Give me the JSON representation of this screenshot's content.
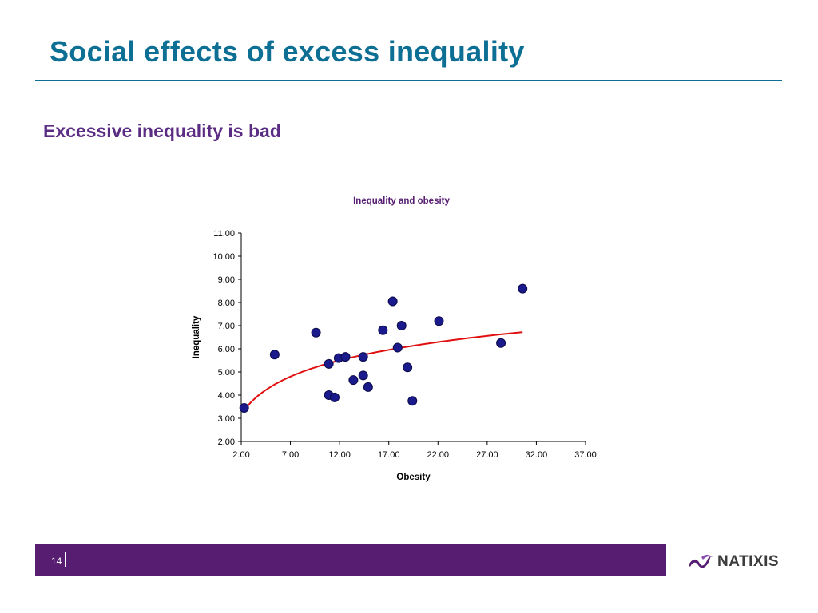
{
  "slide": {
    "title": "Social effects of excess inequality",
    "subtitle": "Excessive inequality is bad",
    "page_number": "14"
  },
  "brand": {
    "name": "NATIXIS",
    "title_color": "#0e6f94",
    "accent_color": "#571d70"
  },
  "chart_data": {
    "type": "scatter",
    "title": "Inequality and obesity",
    "xlabel": "Obesity",
    "ylabel": "Inequality",
    "xlim": [
      2,
      37
    ],
    "ylim": [
      2,
      11
    ],
    "x_ticks": [
      "2.00",
      "7.00",
      "12.00",
      "17.00",
      "22.00",
      "27.00",
      "32.00",
      "37.00"
    ],
    "y_ticks": [
      "2.00",
      "3.00",
      "4.00",
      "5.00",
      "6.00",
      "7.00",
      "8.00",
      "9.00",
      "10.00",
      "11.00"
    ],
    "grid": false,
    "legend": "none",
    "marker_color": "#1a1a8c",
    "trend_color": "#e01010",
    "points": [
      {
        "x": 2.3,
        "y": 3.45
      },
      {
        "x": 5.4,
        "y": 5.75
      },
      {
        "x": 9.6,
        "y": 6.7
      },
      {
        "x": 10.9,
        "y": 5.35
      },
      {
        "x": 10.9,
        "y": 4.0
      },
      {
        "x": 11.5,
        "y": 3.9
      },
      {
        "x": 11.9,
        "y": 5.6
      },
      {
        "x": 12.6,
        "y": 5.65
      },
      {
        "x": 13.4,
        "y": 4.65
      },
      {
        "x": 14.4,
        "y": 5.65
      },
      {
        "x": 14.4,
        "y": 4.85
      },
      {
        "x": 14.9,
        "y": 4.35
      },
      {
        "x": 16.4,
        "y": 6.8
      },
      {
        "x": 17.4,
        "y": 8.05
      },
      {
        "x": 17.9,
        "y": 6.05
      },
      {
        "x": 18.3,
        "y": 7.0
      },
      {
        "x": 18.9,
        "y": 5.2
      },
      {
        "x": 19.4,
        "y": 3.75
      },
      {
        "x": 22.1,
        "y": 7.2
      },
      {
        "x": 28.4,
        "y": 6.25
      },
      {
        "x": 30.6,
        "y": 8.6
      }
    ],
    "trendline": {
      "type": "logarithmic",
      "x_start": 2.3,
      "x_end": 30.6,
      "y_start": 3.35,
      "y_end": 6.72
    }
  }
}
